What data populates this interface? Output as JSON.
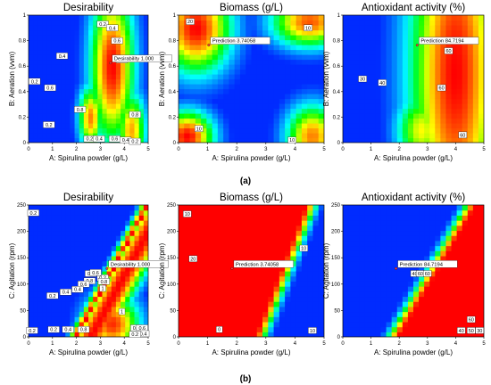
{
  "colors": {
    "low": "#0000ff",
    "mid": "#00ff00",
    "high": "#ff0000",
    "label_bg": "#ffffff",
    "axis": "#000000"
  },
  "chart_data": [
    {
      "type": "heatmap",
      "row": "a",
      "col": 0,
      "title": "Desirability",
      "xlabel": "A: Spirulina powder (g/L)",
      "ylabel": "B: Aeration (vvm)",
      "xlim": [
        0,
        5
      ],
      "ylim": [
        0,
        1
      ],
      "xticks": [
        "0",
        "1",
        "2",
        "3",
        "4",
        "5"
      ],
      "yticks": [
        "0",
        "0.2",
        "0.4",
        "0.6",
        "0.8",
        "1"
      ],
      "z_range": [
        0,
        1
      ],
      "hotspots": [
        {
          "x": 3.5,
          "y": 0.6,
          "z": 1.0,
          "sx": 0.9,
          "sy": 0.6
        },
        {
          "x": 2.6,
          "y": 0.2,
          "z": 0.85,
          "sx": 0.5,
          "sy": 0.25
        },
        {
          "x": 4.3,
          "y": 0.1,
          "z": 0.8,
          "sx": 0.6,
          "sy": 0.3
        }
      ],
      "contour_labels": [
        {
          "text": "0.2",
          "x": 3.1,
          "y": 0.93
        },
        {
          "text": "0.4",
          "x": 1.4,
          "y": 0.68
        },
        {
          "text": "0.4",
          "x": 3.5,
          "y": 0.9
        },
        {
          "text": "0.6",
          "x": 3.7,
          "y": 0.8
        },
        {
          "text": "0.8",
          "x": 3.9,
          "y": 0.65
        },
        {
          "text": "0.2",
          "x": 0.25,
          "y": 0.48
        },
        {
          "text": "0.6",
          "x": 0.9,
          "y": 0.43
        },
        {
          "text": "0.8",
          "x": 2.15,
          "y": 0.26
        },
        {
          "text": "0.8",
          "x": 4.45,
          "y": 0.22
        },
        {
          "text": "0.2",
          "x": 0.85,
          "y": 0.14
        },
        {
          "text": "0.2",
          "x": 2.55,
          "y": 0.03
        },
        {
          "text": "0.4",
          "x": 2.95,
          "y": 0.03
        },
        {
          "text": "0.6",
          "x": 3.6,
          "y": 0.03
        },
        {
          "text": "0.4",
          "x": 4.05,
          "y": 0.02
        },
        {
          "text": "0.2",
          "x": 4.45,
          "y": 0.01
        }
      ],
      "prediction_label": {
        "text": "Desirability  1.000",
        "x": 3.5,
        "y": 0.66
      }
    },
    {
      "type": "heatmap",
      "row": "a",
      "col": 1,
      "title": "Biomass  (g/L)",
      "xlabel": "A: Spirulina powder (g/L)",
      "ylabel": "B: Aeration (vvm)",
      "xlim": [
        0,
        5
      ],
      "ylim": [
        0,
        1
      ],
      "xticks": [
        "0",
        "1",
        "2",
        "3",
        "4",
        "5"
      ],
      "yticks": [
        "0",
        "0.2",
        "0.4",
        "0.6",
        "0.8",
        "1"
      ],
      "z_range": [
        0,
        1
      ],
      "hotspots": [
        {
          "x": 0.6,
          "y": 0.9,
          "z": 1.0,
          "sx": 1.2,
          "sy": 0.35
        },
        {
          "x": 0.3,
          "y": 0.05,
          "z": 1.0,
          "sx": 0.9,
          "sy": 0.2
        },
        {
          "x": 4.5,
          "y": 0.95,
          "z": 0.9,
          "sx": 1.3,
          "sy": 0.2
        },
        {
          "x": 4.6,
          "y": 0.05,
          "z": 0.85,
          "sx": 0.9,
          "sy": 0.25
        }
      ],
      "contour_labels": [
        {
          "text": "20",
          "x": 0.4,
          "y": 0.95
        },
        {
          "text": "10",
          "x": 0.7,
          "y": 0.11
        },
        {
          "text": "10",
          "x": 3.9,
          "y": 0.02
        },
        {
          "text": "10",
          "x": 4.45,
          "y": 0.9
        }
      ],
      "prediction_label": {
        "text": "Prediction  3.74058",
        "x": 1.1,
        "y": 0.8
      }
    },
    {
      "type": "heatmap",
      "row": "a",
      "col": 2,
      "title": "Antioxidant activity (%)",
      "xlabel": "A: Spirulina powder (g/L)",
      "ylabel": "B: Aeration (vvm)",
      "xlim": [
        0,
        5
      ],
      "ylim": [
        0,
        1
      ],
      "xticks": [
        "0",
        "1",
        "2",
        "3",
        "4",
        "5"
      ],
      "yticks": [
        "0",
        "0.2",
        "0.4",
        "0.6",
        "0.8",
        "1"
      ],
      "z_range": [
        0,
        1
      ],
      "hotspots": [
        {
          "x": 4.0,
          "y": 0.55,
          "z": 1.0,
          "sx": 1.6,
          "sy": 1.5
        },
        {
          "x": 2.8,
          "y": 0.1,
          "z": 0.7,
          "sx": 0.9,
          "sy": 0.3
        }
      ],
      "contour_labels": [
        {
          "text": "30",
          "x": 0.7,
          "y": 0.5
        },
        {
          "text": "40",
          "x": 1.4,
          "y": 0.47
        },
        {
          "text": "60",
          "x": 3.5,
          "y": 0.43
        },
        {
          "text": "60",
          "x": 3.75,
          "y": 0.72
        },
        {
          "text": "60",
          "x": 4.25,
          "y": 0.06
        }
      ],
      "prediction_label": {
        "text": "Prediction  84.7194",
        "x": 2.7,
        "y": 0.8
      }
    },
    {
      "type": "heatmap",
      "row": "b",
      "col": 0,
      "title": "Desirability",
      "xlabel": "A: Spirulina powder (g/L)",
      "ylabel": "C: Agitation (rpm)",
      "xlim": [
        0,
        5
      ],
      "ylim": [
        0,
        250
      ],
      "xticks": [
        "0",
        "1",
        "2",
        "3",
        "4",
        "5"
      ],
      "yticks": [
        "0",
        "50",
        "100",
        "150",
        "200",
        "250"
      ],
      "z_range": [
        0,
        1
      ],
      "band": {
        "x0": 2.0,
        "slope": 0.012,
        "width": 0.55
      },
      "hotspots": [
        {
          "x": 3.5,
          "y": 25,
          "z": 0.95,
          "sx": 1.1,
          "sy": 55
        }
      ],
      "contour_labels": [
        {
          "text": "0.2",
          "x": 0.2,
          "y": 235
        },
        {
          "text": "0.2",
          "x": 3.1,
          "y": 112
        },
        {
          "text": "0.4",
          "x": 2.6,
          "y": 120
        },
        {
          "text": "0.6",
          "x": 2.8,
          "y": 122
        },
        {
          "text": "0.8",
          "x": 2.55,
          "y": 106
        },
        {
          "text": "0.8",
          "x": 3.15,
          "y": 105
        },
        {
          "text": "0.6",
          "x": 2.3,
          "y": 100
        },
        {
          "text": "0.4",
          "x": 1.55,
          "y": 85
        },
        {
          "text": "0.4",
          "x": 2.05,
          "y": 90
        },
        {
          "text": "0.2",
          "x": 1.0,
          "y": 78
        },
        {
          "text": "1",
          "x": 3.1,
          "y": 92
        },
        {
          "text": "1",
          "x": 3.9,
          "y": 48
        },
        {
          "text": "0.2",
          "x": 0.15,
          "y": 12
        },
        {
          "text": "0.2",
          "x": 1.05,
          "y": 14
        },
        {
          "text": "0.4",
          "x": 1.65,
          "y": 14
        },
        {
          "text": "0.8",
          "x": 2.3,
          "y": 14
        },
        {
          "text": "0.8",
          "x": 4.5,
          "y": 17
        },
        {
          "text": "0.6",
          "x": 4.75,
          "y": 17
        },
        {
          "text": "0.4",
          "x": 4.8,
          "y": 6
        },
        {
          "text": "0.2",
          "x": 4.45,
          "y": 5
        }
      ],
      "prediction_label": {
        "text": "Desirability  1.000",
        "x": 3.35,
        "y": 138
      }
    },
    {
      "type": "heatmap",
      "row": "b",
      "col": 1,
      "title": "Biomass  (g/L)",
      "xlabel": "A: Spirulina powder (g/L)",
      "ylabel": "C: Agitation (rpm)",
      "xlim": [
        0,
        5
      ],
      "ylim": [
        0,
        250
      ],
      "xticks": [
        "0",
        "1",
        "2",
        "3",
        "4",
        "5"
      ],
      "yticks": [
        "0",
        "50",
        "100",
        "150",
        "200",
        "250"
      ],
      "z_range": [
        0,
        1
      ],
      "band": {
        "x0": 2.6,
        "slope": 0.007,
        "width": 0.55
      },
      "fill_left": true,
      "contour_labels": [
        {
          "text": "10",
          "x": 0.3,
          "y": 233
        },
        {
          "text": "20",
          "x": 0.5,
          "y": 148
        },
        {
          "text": "10",
          "x": 4.3,
          "y": 168
        },
        {
          "text": "10",
          "x": 4.6,
          "y": 12
        },
        {
          "text": "0",
          "x": 1.4,
          "y": 14
        }
      ],
      "prediction_label": {
        "text": "Prediction  3.74058",
        "x": 1.9,
        "y": 138
      }
    },
    {
      "type": "heatmap",
      "row": "b",
      "col": 2,
      "title": "Antioxidant activity (%)",
      "xlabel": "A: Spirulina powder (g/L)",
      "ylabel": "C: Agitation (rpm)",
      "xlim": [
        0,
        5
      ],
      "ylim": [
        0,
        250
      ],
      "xticks": [
        "0",
        "1",
        "2",
        "3",
        "4",
        "5"
      ],
      "yticks": [
        "0",
        "50",
        "100",
        "150",
        "200",
        "250"
      ],
      "z_range": [
        0,
        1
      ],
      "band": {
        "x0": 2.0,
        "slope": 0.011,
        "width": 0.6
      },
      "fill_right": true,
      "contour_labels": [
        {
          "text": "40",
          "x": 2.55,
          "y": 120
        },
        {
          "text": "60",
          "x": 2.75,
          "y": 120
        },
        {
          "text": "60",
          "x": 3.0,
          "y": 120
        },
        {
          "text": "60",
          "x": 4.55,
          "y": 33
        },
        {
          "text": "40",
          "x": 4.2,
          "y": 12
        },
        {
          "text": "50",
          "x": 4.55,
          "y": 12
        },
        {
          "text": "30",
          "x": 4.85,
          "y": 12
        }
      ],
      "prediction_label": {
        "text": "Prediction  84.7194",
        "x": 1.95,
        "y": 138
      }
    }
  ],
  "captions": {
    "a": "(a)",
    "b": "(b)"
  }
}
